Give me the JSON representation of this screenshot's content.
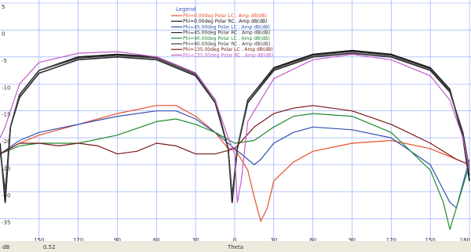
{
  "chart_data": {
    "type": "line",
    "title": "",
    "xlabel": "Theta",
    "ylabel": "",
    "x_axis": {
      "segments": [
        {
          "ticks_desc": [
            180,
            150,
            120,
            90,
            60,
            30,
            0
          ]
        },
        {
          "ticks_asc": [
            0,
            30,
            60,
            90,
            120,
            150,
            180
          ]
        }
      ],
      "tick_labels": [
        "150",
        "120",
        "90",
        "60",
        "30",
        "0",
        "30",
        "60",
        "90",
        "120",
        "150",
        "180"
      ]
    },
    "y_axis": {
      "ylim": [
        -38,
        5
      ],
      "ticks": [
        5,
        0,
        -5,
        -10,
        -15,
        -20,
        -25,
        -30,
        -35
      ],
      "tick_labels": [
        "5",
        "0",
        "-5",
        "-10",
        "-15",
        "-20",
        "-25",
        "-30",
        "-35"
      ]
    },
    "corner_labels": {
      "y_unit": "dB",
      "x_readout": "0.52"
    },
    "grid": true,
    "legend_position": "top-center",
    "legend_title": "Legend",
    "series": [
      {
        "name": "Phi=0.00deg Polar LC . Amp dB(dB)",
        "color": "#e8502a",
        "points": [
          [
            -180,
            -23
          ],
          [
            -165,
            -21
          ],
          [
            -150,
            -19.5
          ],
          [
            -120,
            -17.5
          ],
          [
            -90,
            -15.5
          ],
          [
            -60,
            -14
          ],
          [
            -45,
            -14
          ],
          [
            -30,
            -16
          ],
          [
            -15,
            -19
          ],
          [
            -5,
            -22
          ],
          [
            0,
            -22
          ],
          [
            10,
            -26
          ],
          [
            15,
            -31
          ],
          [
            20,
            -35.5
          ],
          [
            25,
            -33
          ],
          [
            30,
            -28
          ],
          [
            45,
            -24.5
          ],
          [
            60,
            -22.5
          ],
          [
            90,
            -21
          ],
          [
            120,
            -20.5
          ],
          [
            150,
            -22
          ],
          [
            170,
            -24
          ],
          [
            180,
            -25
          ]
        ]
      },
      {
        "name": "Phi=0.00deg Polar RC . Amp dB(dB)",
        "color": "#111111",
        "points": [
          [
            -180,
            -21
          ],
          [
            -176,
            -32
          ],
          [
            -172,
            -18
          ],
          [
            -165,
            -12
          ],
          [
            -150,
            -7.5
          ],
          [
            -120,
            -5
          ],
          [
            -90,
            -4.5
          ],
          [
            -60,
            -5
          ],
          [
            -30,
            -8
          ],
          [
            -15,
            -13
          ],
          [
            -5,
            -22
          ],
          [
            -2,
            -32
          ],
          [
            2,
            -22
          ],
          [
            10,
            -13
          ],
          [
            30,
            -7
          ],
          [
            60,
            -4.5
          ],
          [
            90,
            -3.8
          ],
          [
            120,
            -4.5
          ],
          [
            150,
            -7
          ],
          [
            165,
            -11
          ],
          [
            175,
            -20
          ],
          [
            180,
            -28
          ]
        ]
      },
      {
        "name": "Phi=45.00deg Polar LC . Amp dB(dB)",
        "color": "#3050b0",
        "points": [
          [
            -180,
            -23
          ],
          [
            -165,
            -20.5
          ],
          [
            -150,
            -19
          ],
          [
            -120,
            -17.5
          ],
          [
            -90,
            -16
          ],
          [
            -60,
            -15
          ],
          [
            -45,
            -15
          ],
          [
            -30,
            -16.5
          ],
          [
            -15,
            -19
          ],
          [
            0,
            -22
          ],
          [
            10,
            -24
          ],
          [
            15,
            -25
          ],
          [
            20,
            -24
          ],
          [
            30,
            -21
          ],
          [
            45,
            -19
          ],
          [
            60,
            -18
          ],
          [
            90,
            -18.5
          ],
          [
            120,
            -20
          ],
          [
            150,
            -25
          ],
          [
            165,
            -32
          ],
          [
            170,
            -33
          ],
          [
            180,
            -24
          ]
        ]
      },
      {
        "name": "Phi=45.00deg Polar RC . Amp dB(dB)",
        "color": "#2a2a2a",
        "points": [
          [
            -180,
            -22
          ],
          [
            -176,
            -30
          ],
          [
            -172,
            -18
          ],
          [
            -165,
            -12.5
          ],
          [
            -150,
            -8
          ],
          [
            -120,
            -5.5
          ],
          [
            -90,
            -5
          ],
          [
            -60,
            -5.5
          ],
          [
            -30,
            -8.5
          ],
          [
            -15,
            -13.5
          ],
          [
            -5,
            -22
          ],
          [
            -2,
            -31
          ],
          [
            2,
            -22
          ],
          [
            10,
            -13.5
          ],
          [
            30,
            -7.5
          ],
          [
            60,
            -5
          ],
          [
            90,
            -4.3
          ],
          [
            120,
            -5
          ],
          [
            150,
            -7.5
          ],
          [
            165,
            -11.5
          ],
          [
            175,
            -19
          ],
          [
            180,
            -26
          ]
        ]
      },
      {
        "name": "Phi=90.00deg Polar LC . Amp dB(dB)",
        "color": "#208a30",
        "points": [
          [
            -180,
            -23
          ],
          [
            -165,
            -21.5
          ],
          [
            -150,
            -21
          ],
          [
            -120,
            -21
          ],
          [
            -90,
            -19.5
          ],
          [
            -60,
            -17
          ],
          [
            -45,
            -16.5
          ],
          [
            -30,
            -17.5
          ],
          [
            -15,
            -19
          ],
          [
            0,
            -21
          ],
          [
            15,
            -20.5
          ],
          [
            30,
            -18
          ],
          [
            45,
            -16
          ],
          [
            60,
            -15.5
          ],
          [
            90,
            -16
          ],
          [
            120,
            -19
          ],
          [
            150,
            -26
          ],
          [
            160,
            -32
          ],
          [
            165,
            -37
          ],
          [
            170,
            -33
          ],
          [
            180,
            -25
          ]
        ]
      },
      {
        "name": "Phi=90.00deg Polar RC . Amp dB(dB)",
        "color": "#404040",
        "points": [
          [
            -180,
            -22
          ],
          [
            -176,
            -30.5
          ],
          [
            -172,
            -18
          ],
          [
            -165,
            -12
          ],
          [
            -150,
            -7.5
          ],
          [
            -120,
            -5.2
          ],
          [
            -90,
            -4.7
          ],
          [
            -60,
            -5.2
          ],
          [
            -30,
            -8.2
          ],
          [
            -15,
            -13
          ],
          [
            -5,
            -22
          ],
          [
            -2,
            -31
          ],
          [
            2,
            -22
          ],
          [
            10,
            -13
          ],
          [
            30,
            -7.2
          ],
          [
            60,
            -4.7
          ],
          [
            90,
            -4
          ],
          [
            120,
            -4.7
          ],
          [
            150,
            -7.2
          ],
          [
            165,
            -11.2
          ],
          [
            175,
            -19.5
          ],
          [
            180,
            -27
          ]
        ]
      },
      {
        "name": "Phi=135.00deg Polar LC . Amp dB(dB)",
        "color": "#7a1818",
        "points": [
          [
            -180,
            -23
          ],
          [
            -165,
            -21
          ],
          [
            -150,
            -21
          ],
          [
            -135,
            -21.5
          ],
          [
            -120,
            -21
          ],
          [
            -105,
            -21.5
          ],
          [
            -90,
            -23
          ],
          [
            -75,
            -22.5
          ],
          [
            -60,
            -21
          ],
          [
            -45,
            -21.5
          ],
          [
            -30,
            -23
          ],
          [
            -15,
            -23
          ],
          [
            0,
            -22
          ],
          [
            15,
            -18
          ],
          [
            30,
            -15.5
          ],
          [
            45,
            -14.5
          ],
          [
            60,
            -14
          ],
          [
            90,
            -15
          ],
          [
            120,
            -17.5
          ],
          [
            150,
            -21
          ],
          [
            170,
            -24
          ],
          [
            180,
            -25
          ]
        ]
      },
      {
        "name": "Phi=135.00deg Polar RC . Amp dB(dB)",
        "color": "#c45cc8",
        "points": [
          [
            -180,
            -20
          ],
          [
            -176,
            -18
          ],
          [
            -172,
            -15
          ],
          [
            -165,
            -10
          ],
          [
            -150,
            -6
          ],
          [
            -120,
            -4.3
          ],
          [
            -90,
            -4
          ],
          [
            -60,
            -5
          ],
          [
            -30,
            -8
          ],
          [
            -15,
            -13
          ],
          [
            -5,
            -20
          ],
          [
            0,
            -23
          ],
          [
            2,
            -32
          ],
          [
            5,
            -28
          ],
          [
            10,
            -17
          ],
          [
            30,
            -9
          ],
          [
            60,
            -5.5
          ],
          [
            90,
            -4.5
          ],
          [
            120,
            -5.5
          ],
          [
            150,
            -8.5
          ],
          [
            165,
            -13
          ],
          [
            175,
            -20
          ],
          [
            180,
            -26
          ]
        ]
      }
    ]
  }
}
